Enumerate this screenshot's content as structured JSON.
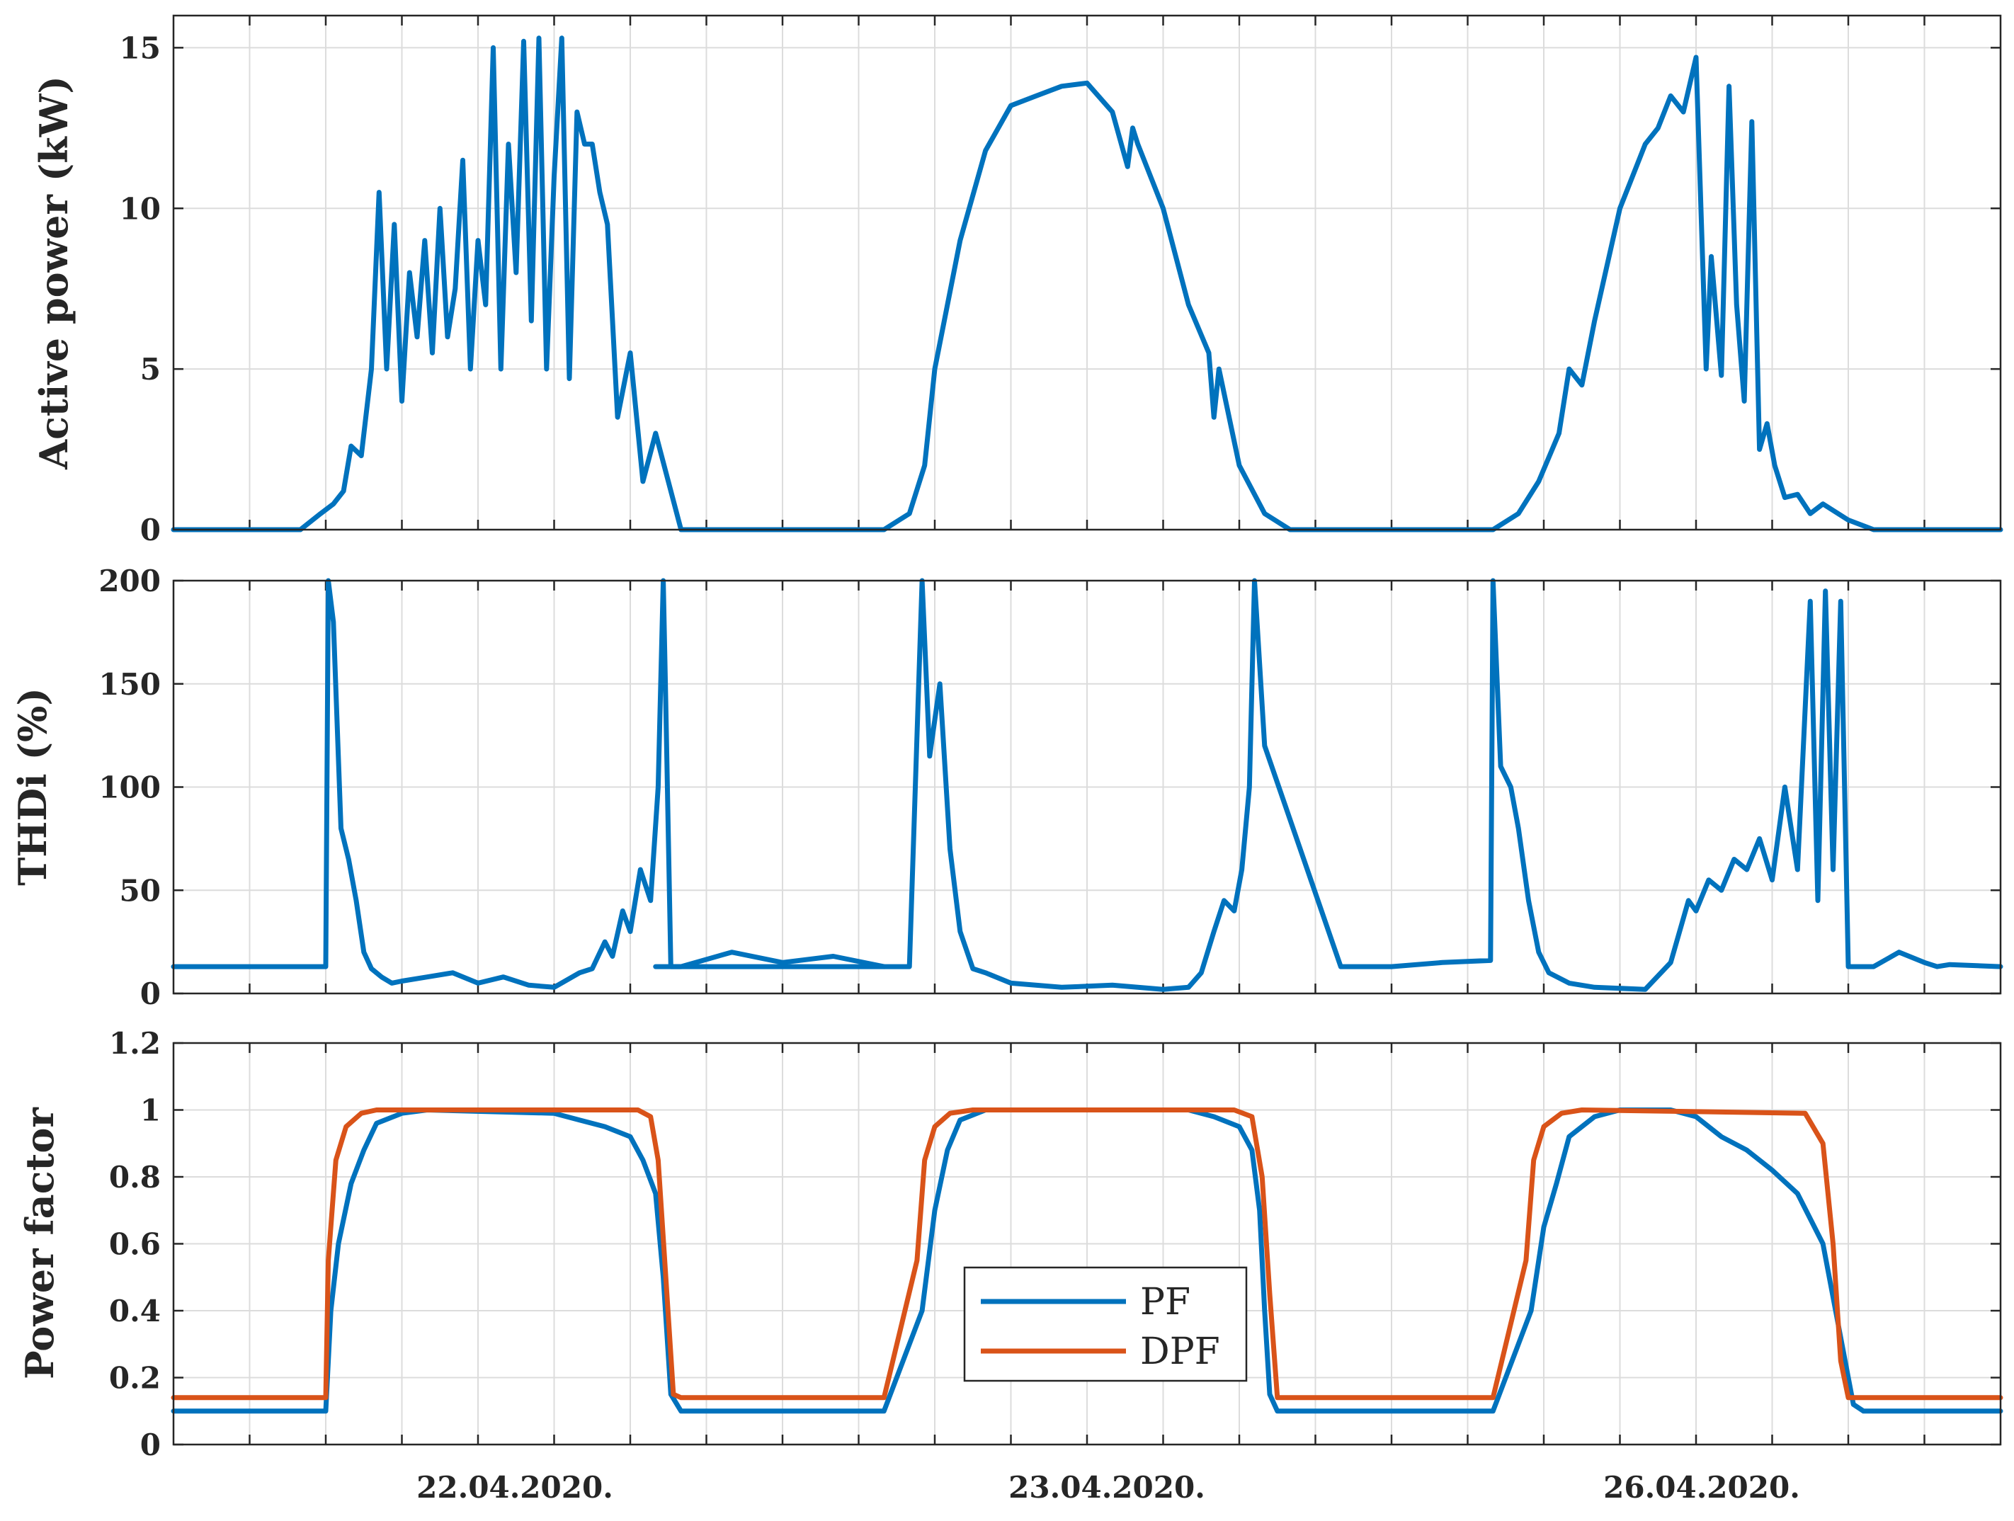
{
  "colors": {
    "pf": "#0072BD",
    "dpf": "#D95319",
    "axis": "#262626",
    "grid": "#dcdcdc"
  },
  "x_date_labels": [
    "22.04.2020.",
    "23.04.2020.",
    "26.04.2020."
  ],
  "chart_data": [
    {
      "type": "line",
      "ylabel": "Active power (kW)",
      "ylim": [
        0,
        16
      ],
      "yticks": [
        0,
        5,
        10,
        15
      ],
      "xlim": [
        0,
        72
      ],
      "grid": true,
      "series": [
        {
          "color": "#0072BD",
          "x": [
            0,
            5,
            5.8,
            6.3,
            6.7,
            7,
            7.4,
            7.8,
            8.1,
            8.4,
            8.7,
            9,
            9.3,
            9.6,
            9.9,
            10.2,
            10.5,
            10.8,
            11.1,
            11.4,
            11.7,
            12,
            12.3,
            12.6,
            12.9,
            13.2,
            13.5,
            13.8,
            14.1,
            14.4,
            14.7,
            15,
            15.3,
            15.6,
            15.9,
            16.2,
            16.5,
            16.8,
            17.1,
            17.5,
            18,
            18.5,
            19,
            20,
            24,
            28,
            29,
            29.6,
            30,
            31,
            32,
            33,
            34,
            35,
            36,
            37,
            37.6,
            37.8,
            38,
            39,
            40,
            40.8,
            41,
            41.2,
            42,
            43,
            44,
            48,
            52,
            53,
            53.8,
            54.6,
            55,
            55.5,
            56,
            57,
            58,
            58.5,
            59,
            59.5,
            60,
            60.4,
            60.6,
            61,
            61.3,
            61.6,
            61.9,
            62.2,
            62.5,
            62.8,
            63.1,
            63.5,
            64,
            64.5,
            65,
            66,
            67,
            68,
            72
          ],
          "y": [
            0,
            0,
            0.5,
            0.8,
            1.2,
            2.6,
            2.3,
            5,
            10.5,
            5,
            9.5,
            4,
            8,
            6,
            9,
            5.5,
            10,
            6,
            7.5,
            11.5,
            5,
            9,
            7,
            15,
            5,
            12,
            8,
            15.2,
            6.5,
            15.3,
            5,
            11,
            15.3,
            4.7,
            13,
            12,
            12,
            10.5,
            9.5,
            3.5,
            5.5,
            1.5,
            3,
            0,
            0,
            0,
            0.5,
            2,
            5,
            9,
            11.8,
            13.2,
            13.5,
            13.8,
            13.9,
            13,
            11.3,
            12.5,
            12,
            10,
            7,
            5.5,
            3.5,
            5,
            2,
            0.5,
            0,
            0,
            0,
            0.5,
            1.5,
            3,
            5,
            4.5,
            6.5,
            10,
            12,
            12.5,
            13.5,
            13,
            14.7,
            5,
            8.5,
            4.8,
            13.8,
            7,
            4,
            12.7,
            2.5,
            3.3,
            2,
            1,
            1.1,
            0.5,
            0.8,
            0.3,
            0,
            0,
            0
          ]
        }
      ]
    },
    {
      "type": "line",
      "ylabel": "THDi (%)",
      "ylim": [
        0,
        200
      ],
      "yticks": [
        0,
        50,
        100,
        150,
        200
      ],
      "xlim": [
        0,
        72
      ],
      "grid": true,
      "series": [
        {
          "color": "#0072BD",
          "x": [
            0,
            6,
            6.1,
            6.3,
            6.6,
            6.9,
            7.2,
            7.5,
            7.8,
            8.2,
            8.6,
            9,
            10,
            11,
            12,
            13,
            14,
            15,
            16,
            16.5,
            17,
            17.3,
            17.7,
            18,
            18.4,
            18.8,
            19.1,
            19.3,
            19.4,
            19.6,
            20,
            22,
            24,
            26,
            28,
            29,
            29.5,
            29.8,
            30.2,
            30.6,
            31,
            31.5,
            32,
            33,
            35,
            37,
            38,
            39,
            40,
            40.5,
            41,
            41.4,
            41.8,
            42.1,
            42.4,
            42.6,
            43,
            46,
            48,
            50,
            51.9,
            52,
            52.3,
            52.7,
            53,
            53.4,
            53.8,
            54.2,
            55,
            56,
            58,
            59,
            59.7,
            60,
            60.5,
            61,
            61.5,
            62,
            62.5,
            63,
            63.5,
            64,
            64.5,
            64.8,
            65.1,
            65.4,
            65.7,
            66,
            66.3,
            66.6,
            67,
            68,
            69,
            69.5,
            70,
            72
          ],
          "y": [
            13,
            13,
            200,
            180,
            80,
            65,
            45,
            20,
            12,
            8,
            5,
            6,
            8,
            10,
            5,
            8,
            4,
            3,
            10,
            12,
            25,
            18,
            40,
            30,
            60,
            45,
            100,
            200,
            140,
            13,
            13,
            20,
            15,
            18,
            13,
            13,
            200,
            115,
            150,
            70,
            30,
            12,
            10,
            5,
            3,
            4,
            3,
            2,
            3,
            10,
            30,
            45,
            40,
            60,
            100,
            200,
            120,
            13,
            13,
            15,
            16,
            200,
            110,
            100,
            80,
            45,
            20,
            10,
            5,
            3,
            2,
            15,
            45,
            40,
            55,
            50,
            65,
            60,
            75,
            55,
            100,
            60,
            190,
            45,
            195,
            60,
            190,
            13,
            13,
            13,
            13,
            20,
            15,
            13,
            14,
            13
          ]
        },
        {
          "color": "#0072BD",
          "x": [
            19,
            24,
            28
          ],
          "y": [
            13,
            13,
            13
          ]
        }
      ]
    },
    {
      "type": "line",
      "ylabel": "Power factor",
      "ylim": [
        0,
        1.2
      ],
      "yticks": [
        0,
        0.2,
        0.4,
        0.6,
        0.8,
        1,
        1.2
      ],
      "yticklabels": [
        "0",
        "0.2",
        "0.4",
        "0.6",
        "0.8",
        "1",
        "1.2"
      ],
      "xlim": [
        0,
        72
      ],
      "grid": true,
      "legend": "lower-center",
      "xticklabels": [
        "22.04.2020.",
        "23.04.2020.",
        "26.04.2020."
      ],
      "series": [
        {
          "name": "PF",
          "color": "#0072BD",
          "x": [
            0,
            6,
            6.2,
            6.5,
            7,
            7.5,
            8,
            9,
            10,
            15,
            16,
            17,
            18,
            18.5,
            19,
            19.3,
            19.6,
            20,
            28,
            29.5,
            30,
            30.5,
            31,
            32,
            33,
            40,
            41,
            42,
            42.5,
            42.8,
            43,
            43.2,
            43.5,
            52,
            53.5,
            54,
            54.5,
            55,
            56,
            57,
            58,
            59,
            60,
            61,
            62,
            63,
            64,
            65,
            65.5,
            66,
            66.2,
            66.6,
            67,
            72
          ],
          "y": [
            0.1,
            0.1,
            0.4,
            0.6,
            0.78,
            0.88,
            0.96,
            0.99,
            1,
            0.99,
            0.97,
            0.95,
            0.92,
            0.85,
            0.75,
            0.5,
            0.15,
            0.1,
            0.1,
            0.4,
            0.7,
            0.88,
            0.97,
            1,
            1,
            1,
            0.98,
            0.95,
            0.88,
            0.7,
            0.4,
            0.15,
            0.1,
            0.1,
            0.4,
            0.65,
            0.78,
            0.92,
            0.98,
            1,
            1,
            1,
            0.98,
            0.92,
            0.88,
            0.82,
            0.75,
            0.6,
            0.4,
            0.2,
            0.12,
            0.1,
            0.1,
            0.1
          ]
        },
        {
          "name": "DPF",
          "color": "#D95319",
          "x": [
            0,
            6,
            6.1,
            6.4,
            6.8,
            7.4,
            8,
            18.3,
            18.8,
            19.1,
            19.4,
            19.7,
            20,
            28,
            29.3,
            29.6,
            30,
            30.6,
            31.5,
            41.8,
            42.5,
            42.9,
            43.2,
            43.5,
            52,
            53.3,
            53.6,
            54,
            54.7,
            55.5,
            64.3,
            65,
            65.4,
            65.7,
            66,
            72
          ],
          "y": [
            0.14,
            0.14,
            0.55,
            0.85,
            0.95,
            0.99,
            1,
            1,
            0.98,
            0.85,
            0.5,
            0.15,
            0.14,
            0.14,
            0.55,
            0.85,
            0.95,
            0.99,
            1,
            1,
            0.98,
            0.8,
            0.45,
            0.14,
            0.14,
            0.55,
            0.85,
            0.95,
            0.99,
            1,
            0.99,
            0.9,
            0.6,
            0.25,
            0.14,
            0.14
          ]
        }
      ]
    }
  ]
}
